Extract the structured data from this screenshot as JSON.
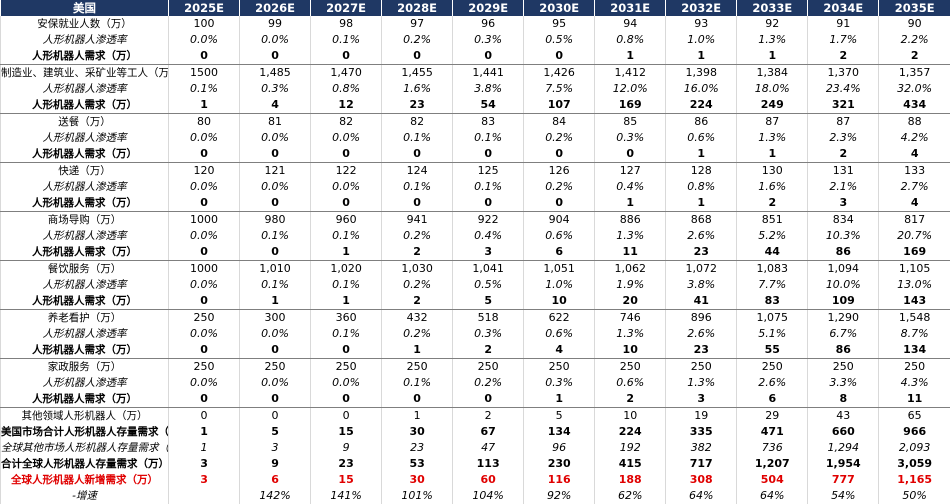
{
  "header": {
    "corner": "美国",
    "years": [
      "2025E",
      "2026E",
      "2027E",
      "2028E",
      "2029E",
      "2030E",
      "2031E",
      "2032E",
      "2033E",
      "2034E",
      "2035E"
    ]
  },
  "rows": [
    {
      "label": "安保就业人数（万）",
      "cells": [
        "100",
        "99",
        "98",
        "97",
        "96",
        "95",
        "94",
        "93",
        "92",
        "91",
        "90"
      ]
    },
    {
      "label": "人形机器人渗透率",
      "cells": [
        "0.0%",
        "0.0%",
        "0.1%",
        "0.2%",
        "0.3%",
        "0.5%",
        "0.8%",
        "1.0%",
        "1.3%",
        "1.7%",
        "2.2%"
      ]
    },
    {
      "label": "人形机器人需求（万）",
      "cells": [
        "0",
        "0",
        "0",
        "0",
        "0",
        "0",
        "1",
        "1",
        "1",
        "2",
        "2"
      ]
    },
    {
      "label": "制造业、建筑业、采矿业等工人（万）",
      "cells": [
        "1500",
        "1,485",
        "1,470",
        "1,455",
        "1,441",
        "1,426",
        "1,412",
        "1,398",
        "1,384",
        "1,370",
        "1,357"
      ]
    },
    {
      "label": "人形机器人渗透率",
      "cells": [
        "0.1%",
        "0.3%",
        "0.8%",
        "1.6%",
        "3.8%",
        "7.5%",
        "12.0%",
        "16.0%",
        "18.0%",
        "23.4%",
        "32.0%"
      ]
    },
    {
      "label": "人形机器人需求（万）",
      "cells": [
        "1",
        "4",
        "12",
        "23",
        "54",
        "107",
        "169",
        "224",
        "249",
        "321",
        "434"
      ]
    },
    {
      "label": "送餐（万）",
      "cells": [
        "80",
        "81",
        "82",
        "82",
        "83",
        "84",
        "85",
        "86",
        "87",
        "87",
        "88"
      ]
    },
    {
      "label": "人形机器人渗透率",
      "cells": [
        "0.0%",
        "0.0%",
        "0.0%",
        "0.1%",
        "0.1%",
        "0.2%",
        "0.3%",
        "0.6%",
        "1.3%",
        "2.3%",
        "4.2%"
      ]
    },
    {
      "label": "人形机器人需求（万）",
      "cells": [
        "0",
        "0",
        "0",
        "0",
        "0",
        "0",
        "0",
        "1",
        "1",
        "2",
        "4"
      ]
    },
    {
      "label": "快递（万）",
      "cells": [
        "120",
        "121",
        "122",
        "124",
        "125",
        "126",
        "127",
        "128",
        "130",
        "131",
        "133"
      ]
    },
    {
      "label": "人形机器人渗透率",
      "cells": [
        "0.0%",
        "0.0%",
        "0.0%",
        "0.1%",
        "0.1%",
        "0.2%",
        "0.4%",
        "0.8%",
        "1.6%",
        "2.1%",
        "2.7%"
      ]
    },
    {
      "label": "人形机器人需求（万）",
      "cells": [
        "0",
        "0",
        "0",
        "0",
        "0",
        "0",
        "1",
        "1",
        "2",
        "3",
        "4"
      ]
    },
    {
      "label": "商场导购（万）",
      "cells": [
        "1000",
        "980",
        "960",
        "941",
        "922",
        "904",
        "886",
        "868",
        "851",
        "834",
        "817"
      ]
    },
    {
      "label": "人形机器人渗透率",
      "cells": [
        "0.0%",
        "0.1%",
        "0.1%",
        "0.2%",
        "0.4%",
        "0.6%",
        "1.3%",
        "2.6%",
        "5.2%",
        "10.3%",
        "20.7%"
      ]
    },
    {
      "label": "人形机器人需求（万）",
      "cells": [
        "0",
        "0",
        "1",
        "2",
        "3",
        "6",
        "11",
        "23",
        "44",
        "86",
        "169"
      ]
    },
    {
      "label": "餐饮服务（万）",
      "cells": [
        "1000",
        "1,010",
        "1,020",
        "1,030",
        "1,041",
        "1,051",
        "1,062",
        "1,072",
        "1,083",
        "1,094",
        "1,105"
      ]
    },
    {
      "label": "人形机器人渗透率",
      "cells": [
        "0.0%",
        "0.1%",
        "0.1%",
        "0.2%",
        "0.5%",
        "1.0%",
        "1.9%",
        "3.8%",
        "7.7%",
        "10.0%",
        "13.0%"
      ]
    },
    {
      "label": "人形机器人需求（万）",
      "cells": [
        "0",
        "1",
        "1",
        "2",
        "5",
        "10",
        "20",
        "41",
        "83",
        "109",
        "143"
      ]
    },
    {
      "label": "养老看护（万）",
      "cells": [
        "250",
        "300",
        "360",
        "432",
        "518",
        "622",
        "746",
        "896",
        "1,075",
        "1,290",
        "1,548"
      ]
    },
    {
      "label": "人形机器人渗透率",
      "cells": [
        "0.0%",
        "0.0%",
        "0.1%",
        "0.2%",
        "0.3%",
        "0.6%",
        "1.3%",
        "2.6%",
        "5.1%",
        "6.7%",
        "8.7%"
      ]
    },
    {
      "label": "人形机器人需求（万）",
      "cells": [
        "0",
        "0",
        "0",
        "1",
        "2",
        "4",
        "10",
        "23",
        "55",
        "86",
        "134"
      ]
    },
    {
      "label": "家政服务（万）",
      "cells": [
        "250",
        "250",
        "250",
        "250",
        "250",
        "250",
        "250",
        "250",
        "250",
        "250",
        "250"
      ]
    },
    {
      "label": "人形机器人渗透率",
      "cells": [
        "0.0%",
        "0.0%",
        "0.0%",
        "0.1%",
        "0.2%",
        "0.3%",
        "0.6%",
        "1.3%",
        "2.6%",
        "3.3%",
        "4.3%"
      ]
    },
    {
      "label": "人形机器人需求（万）",
      "cells": [
        "0",
        "0",
        "0",
        "0",
        "0",
        "1",
        "2",
        "3",
        "6",
        "8",
        "11"
      ]
    },
    {
      "label": "其他领域人形机器人（万）",
      "cells": [
        "0",
        "0",
        "0",
        "1",
        "2",
        "5",
        "10",
        "19",
        "29",
        "43",
        "65"
      ]
    },
    {
      "label": "美国市场合计人形机器人存量需求（万）",
      "cells": [
        "1",
        "5",
        "15",
        "30",
        "67",
        "134",
        "224",
        "335",
        "471",
        "660",
        "966"
      ]
    },
    {
      "label": "全球其他市场人形机器人存量需求（万）",
      "cells": [
        "1",
        "3",
        "9",
        "23",
        "47",
        "96",
        "192",
        "382",
        "736",
        "1,294",
        "2,093"
      ]
    },
    {
      "label": "合计全球人形机器人存量需求（万）",
      "cells": [
        "3",
        "9",
        "23",
        "53",
        "113",
        "230",
        "415",
        "717",
        "1,207",
        "1,954",
        "3,059"
      ]
    },
    {
      "label": "全球人形机器人新增需求（万）",
      "cells": [
        "3",
        "6",
        "15",
        "30",
        "60",
        "116",
        "188",
        "308",
        "504",
        "777",
        "1,165"
      ]
    },
    {
      "label": "-增速",
      "cells": [
        null,
        "142%",
        "141%",
        "101%",
        "104%",
        "92%",
        "62%",
        "64%",
        "64%",
        "54%",
        "50%"
      ]
    }
  ]
}
